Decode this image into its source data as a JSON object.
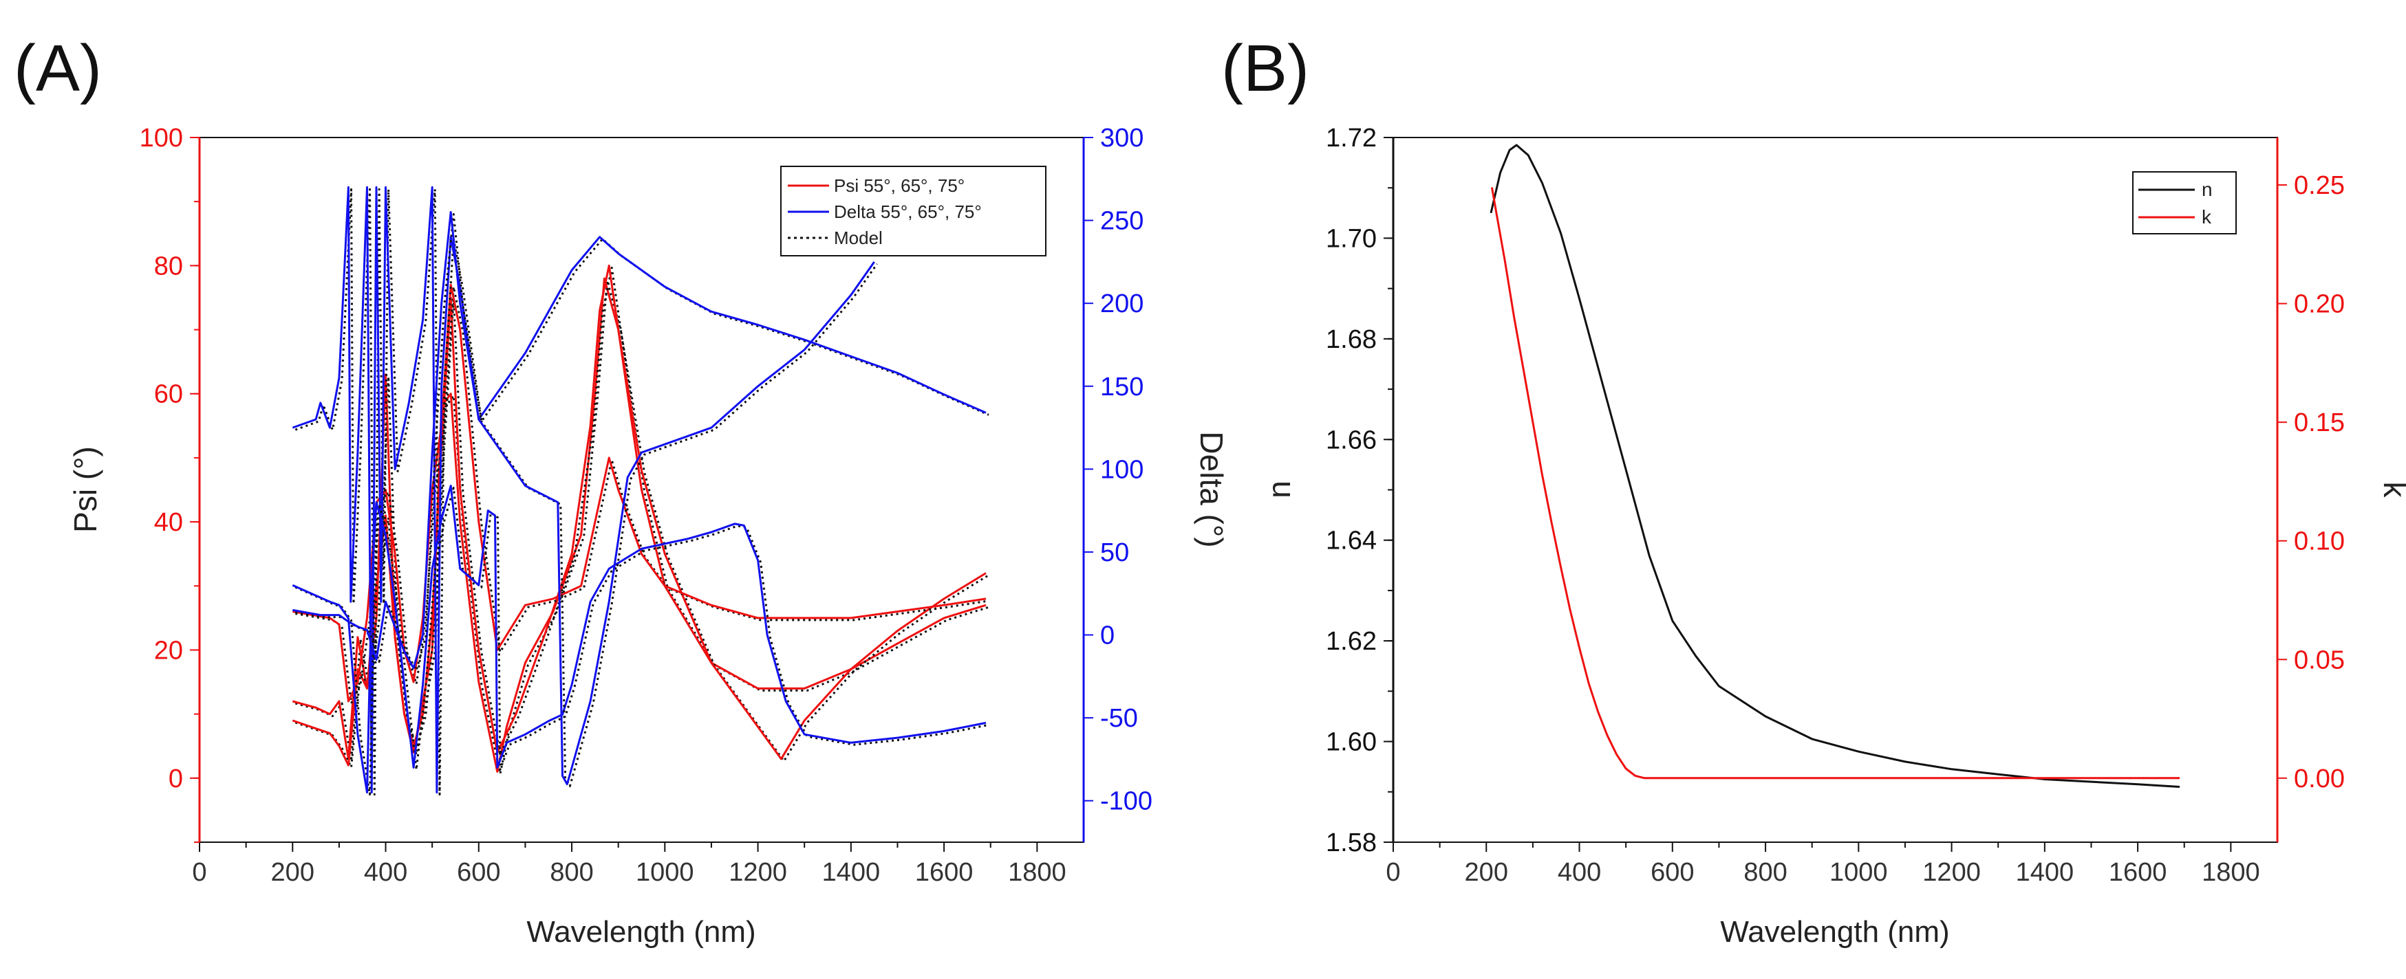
{
  "colors": {
    "red": "#ee1111",
    "blue": "#1111ee",
    "black": "#111111"
  },
  "chart_data": [
    {
      "panel_label": "(A)",
      "type": "line",
      "xlabel": "Wavelength (nm)",
      "ylabel": "Psi (°)",
      "y2label": "Delta (°)",
      "xlim": [
        0,
        1900
      ],
      "ylim": [
        -10,
        100
      ],
      "y2lim": [
        -125,
        300
      ],
      "xticks": [
        "0",
        "200",
        "400",
        "600",
        "800",
        "1000",
        "1200",
        "1400",
        "1600",
        "1800"
      ],
      "yticks": [
        "0",
        "20",
        "40",
        "60",
        "80",
        "100"
      ],
      "y2ticks": [
        "-100",
        "-50",
        "0",
        "50",
        "100",
        "150",
        "200",
        "250",
        "300"
      ],
      "legend": {
        "placement": "top-right",
        "entries": [
          "Psi 55°, 65°, 75°",
          "Delta 55°, 65°, 75°",
          "Model"
        ]
      },
      "series": [
        {
          "name": "Psi 55°",
          "axis": "left",
          "color": "red",
          "points": [
            [
              200,
              12
            ],
            [
              250,
              11
            ],
            [
              280,
              10
            ],
            [
              300,
              12
            ],
            [
              320,
              3
            ],
            [
              340,
              22
            ],
            [
              360,
              14
            ],
            [
              380,
              30
            ],
            [
              400,
              41
            ],
            [
              420,
              22
            ],
            [
              440,
              10
            ],
            [
              460,
              4
            ],
            [
              480,
              12
            ],
            [
              500,
              20
            ],
            [
              520,
              58
            ],
            [
              540,
              60
            ],
            [
              560,
              40
            ],
            [
              600,
              15
            ],
            [
              640,
              1
            ],
            [
              660,
              8
            ],
            [
              700,
              18
            ],
            [
              760,
              26
            ],
            [
              820,
              38
            ],
            [
              850,
              60
            ],
            [
              870,
              78
            ],
            [
              900,
              70
            ],
            [
              950,
              45
            ],
            [
              1000,
              30
            ],
            [
              1100,
              18
            ],
            [
              1200,
              14
            ],
            [
              1300,
              14
            ],
            [
              1400,
              17
            ],
            [
              1500,
              21
            ],
            [
              1600,
              25
            ],
            [
              1690,
              27
            ]
          ]
        },
        {
          "name": "Psi 65°",
          "axis": "left",
          "color": "red",
          "points": [
            [
              200,
              9
            ],
            [
              240,
              8
            ],
            [
              280,
              7
            ],
            [
              300,
              5
            ],
            [
              320,
              2
            ],
            [
              340,
              17
            ],
            [
              360,
              14
            ],
            [
              380,
              25
            ],
            [
              400,
              63
            ],
            [
              420,
              22
            ],
            [
              440,
              10
            ],
            [
              460,
              5
            ],
            [
              480,
              10
            ],
            [
              500,
              25
            ],
            [
              520,
              52
            ],
            [
              540,
              75
            ],
            [
              560,
              45
            ],
            [
              600,
              20
            ],
            [
              640,
              4
            ],
            [
              680,
              10
            ],
            [
              740,
              22
            ],
            [
              800,
              35
            ],
            [
              840,
              55
            ],
            [
              860,
              73
            ],
            [
              880,
              80
            ],
            [
              900,
              70
            ],
            [
              950,
              48
            ],
            [
              1000,
              35
            ],
            [
              1100,
              18
            ],
            [
              1200,
              8
            ],
            [
              1250,
              3
            ],
            [
              1300,
              9
            ],
            [
              1400,
              17
            ],
            [
              1500,
              23
            ],
            [
              1600,
              28
            ],
            [
              1690,
              32
            ]
          ]
        },
        {
          "name": "Psi 75°",
          "axis": "left",
          "color": "red",
          "points": [
            [
              200,
              26
            ],
            [
              280,
              25
            ],
            [
              300,
              24
            ],
            [
              320,
              12
            ],
            [
              340,
              15
            ],
            [
              360,
              25
            ],
            [
              380,
              43
            ],
            [
              400,
              45
            ],
            [
              420,
              35
            ],
            [
              440,
              20
            ],
            [
              460,
              15
            ],
            [
              480,
              25
            ],
            [
              500,
              45
            ],
            [
              520,
              55
            ],
            [
              540,
              77
            ],
            [
              560,
              70
            ],
            [
              600,
              40
            ],
            [
              640,
              20
            ],
            [
              700,
              27
            ],
            [
              760,
              28
            ],
            [
              820,
              30
            ],
            [
              850,
              40
            ],
            [
              880,
              50
            ],
            [
              900,
              45
            ],
            [
              950,
              35
            ],
            [
              1000,
              30
            ],
            [
              1100,
              27
            ],
            [
              1200,
              25
            ],
            [
              1300,
              25
            ],
            [
              1400,
              25
            ],
            [
              1500,
              26
            ],
            [
              1600,
              27
            ],
            [
              1690,
              28
            ]
          ]
        },
        {
          "name": "Delta 55°",
          "axis": "right",
          "color": "blue",
          "points": [
            [
              200,
              125
            ],
            [
              250,
              130
            ],
            [
              260,
              140
            ],
            [
              280,
              125
            ],
            [
              300,
              155
            ],
            [
              320,
              270
            ],
            [
              325,
              20
            ],
            [
              340,
              110
            ],
            [
              360,
              270
            ],
            [
              370,
              -95
            ],
            [
              380,
              270
            ],
            [
              390,
              20
            ],
            [
              400,
              270
            ],
            [
              420,
              100
            ],
            [
              450,
              140
            ],
            [
              480,
              190
            ],
            [
              500,
              270
            ],
            [
              510,
              -95
            ],
            [
              520,
              150
            ],
            [
              540,
              240
            ],
            [
              560,
              210
            ],
            [
              600,
              130
            ],
            [
              700,
              170
            ],
            [
              800,
              220
            ],
            [
              860,
              240
            ],
            [
              900,
              230
            ],
            [
              1000,
              210
            ],
            [
              1100,
              195
            ],
            [
              1200,
              187
            ],
            [
              1300,
              178
            ],
            [
              1400,
              168
            ],
            [
              1500,
              158
            ],
            [
              1600,
              145
            ],
            [
              1690,
              134
            ]
          ]
        },
        {
          "name": "Delta 65°",
          "axis": "right",
          "color": "blue",
          "points": [
            [
              200,
              30
            ],
            [
              240,
              25
            ],
            [
              280,
              20
            ],
            [
              300,
              18
            ],
            [
              320,
              10
            ],
            [
              340,
              -60
            ],
            [
              360,
              -95
            ],
            [
              370,
              30
            ],
            [
              380,
              80
            ],
            [
              400,
              60
            ],
            [
              420,
              20
            ],
            [
              440,
              -30
            ],
            [
              460,
              -80
            ],
            [
              480,
              -30
            ],
            [
              500,
              40
            ],
            [
              520,
              70
            ],
            [
              540,
              90
            ],
            [
              560,
              40
            ],
            [
              600,
              30
            ],
            [
              620,
              75
            ],
            [
              635,
              72
            ],
            [
              640,
              -80
            ],
            [
              660,
              -65
            ],
            [
              700,
              -60
            ],
            [
              750,
              -52
            ],
            [
              780,
              -48
            ],
            [
              800,
              -30
            ],
            [
              840,
              20
            ],
            [
              880,
              40
            ],
            [
              950,
              52
            ],
            [
              1050,
              58
            ],
            [
              1100,
              62
            ],
            [
              1150,
              67
            ],
            [
              1170,
              66
            ],
            [
              1200,
              45
            ],
            [
              1220,
              0
            ],
            [
              1260,
              -40
            ],
            [
              1300,
              -60
            ],
            [
              1400,
              -65
            ],
            [
              1500,
              -62
            ],
            [
              1600,
              -58
            ],
            [
              1690,
              -53
            ]
          ]
        },
        {
          "name": "Delta 75°",
          "axis": "right",
          "color": "blue",
          "points": [
            [
              200,
              15
            ],
            [
              260,
              12
            ],
            [
              300,
              12
            ],
            [
              320,
              8
            ],
            [
              340,
              5
            ],
            [
              360,
              3
            ],
            [
              380,
              -15
            ],
            [
              400,
              20
            ],
            [
              440,
              -10
            ],
            [
              460,
              -20
            ],
            [
              480,
              0
            ],
            [
              500,
              110
            ],
            [
              520,
              200
            ],
            [
              540,
              255
            ],
            [
              560,
              200
            ],
            [
              600,
              130
            ],
            [
              700,
              90
            ],
            [
              770,
              80
            ],
            [
              780,
              -85
            ],
            [
              790,
              -90
            ],
            [
              800,
              -80
            ],
            [
              840,
              -40
            ],
            [
              880,
              20
            ],
            [
              920,
              95
            ],
            [
              950,
              110
            ],
            [
              1000,
              115
            ],
            [
              1100,
              125
            ],
            [
              1200,
              150
            ],
            [
              1300,
              172
            ],
            [
              1400,
              205
            ],
            [
              1450,
              225
            ]
          ]
        }
      ]
    },
    {
      "panel_label": "(B)",
      "type": "line",
      "xlabel": "Wavelength (nm)",
      "ylabel": "n",
      "y2label": "k",
      "xlim": [
        0,
        1900
      ],
      "ylim": [
        1.58,
        1.72
      ],
      "y2lim": [
        -0.027,
        0.27
      ],
      "xticks": [
        "0",
        "200",
        "400",
        "600",
        "800",
        "1000",
        "1200",
        "1400",
        "1600",
        "1800"
      ],
      "yticks": [
        "1.58",
        "1.60",
        "1.62",
        "1.64",
        "1.66",
        "1.68",
        "1.70",
        "1.72"
      ],
      "y2ticks": [
        "0.00",
        "0.05",
        "0.10",
        "0.15",
        "0.20",
        "0.25"
      ],
      "legend": {
        "placement": "top-right",
        "entries": [
          "n",
          "k"
        ]
      },
      "series": [
        {
          "name": "n",
          "axis": "left",
          "color": "black",
          "points": [
            [
              210,
              1.705
            ],
            [
              230,
              1.713
            ],
            [
              250,
              1.7175
            ],
            [
              265,
              1.7185
            ],
            [
              290,
              1.7165
            ],
            [
              320,
              1.711
            ],
            [
              360,
              1.701
            ],
            [
              400,
              1.688
            ],
            [
              450,
              1.671
            ],
            [
              500,
              1.654
            ],
            [
              550,
              1.637
            ],
            [
              600,
              1.624
            ],
            [
              650,
              1.617
            ],
            [
              700,
              1.611
            ],
            [
              800,
              1.605
            ],
            [
              900,
              1.6005
            ],
            [
              1000,
              1.598
            ],
            [
              1100,
              1.596
            ],
            [
              1200,
              1.5945
            ],
            [
              1300,
              1.5935
            ],
            [
              1400,
              1.5925
            ],
            [
              1500,
              1.592
            ],
            [
              1600,
              1.5915
            ],
            [
              1690,
              1.591
            ]
          ]
        },
        {
          "name": "k",
          "axis": "right",
          "color": "red",
          "points": [
            [
              212,
              0.249
            ],
            [
              220,
              0.24
            ],
            [
              240,
              0.218
            ],
            [
              260,
              0.194
            ],
            [
              280,
              0.172
            ],
            [
              300,
              0.15
            ],
            [
              320,
              0.128
            ],
            [
              340,
              0.108
            ],
            [
              360,
              0.089
            ],
            [
              380,
              0.071
            ],
            [
              400,
              0.055
            ],
            [
              420,
              0.04
            ],
            [
              440,
              0.028
            ],
            [
              460,
              0.018
            ],
            [
              480,
              0.01
            ],
            [
              500,
              0.004
            ],
            [
              520,
              0.001
            ],
            [
              540,
              0.0
            ],
            [
              600,
              0.0
            ],
            [
              1000,
              0.0
            ],
            [
              1690,
              0.0
            ]
          ]
        }
      ]
    }
  ]
}
